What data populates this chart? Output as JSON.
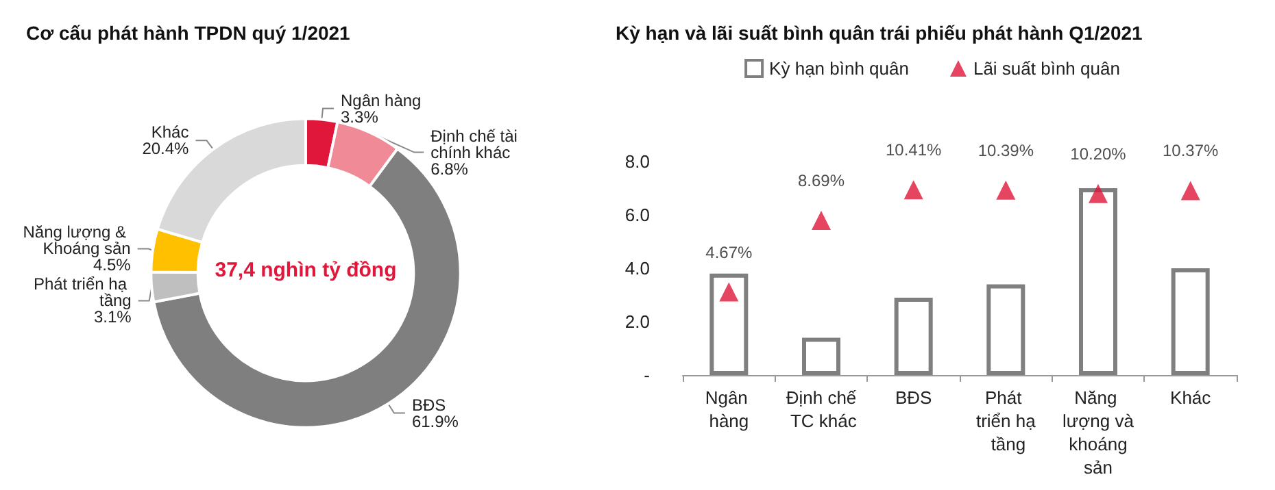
{
  "chart_data": [
    {
      "type": "donut",
      "title": "Cơ cấu phát hành TPDN quý 1/2021",
      "categories": [
        "Ngân hàng",
        "Định chế tài chính khác",
        "BĐS",
        "Phát triển hạ tầng",
        "Năng lượng & Khoáng sản",
        "Khác"
      ],
      "values": [
        3.3,
        6.8,
        61.9,
        3.1,
        4.5,
        20.4
      ],
      "value_labels": [
        "3.3%",
        "6.8%",
        "61.9%",
        "3.1%",
        "4.5%",
        "20.4%"
      ],
      "colors": [
        "#e0163a",
        "#f08a96",
        "#7f7f7f",
        "#bfbfbf",
        "#ffc000",
        "#d9d9d9"
      ],
      "annotations": [
        "37,4 nghìn tỷ đồng"
      ]
    },
    {
      "type": "bar",
      "title": "Kỳ hạn và lãi suất bình quân trái phiếu phát hành Q1/2021",
      "categories": [
        "Ngân hàng",
        "Định chế TC khác",
        "BĐS",
        "Phát triển hạ tầng",
        "Năng lượng và khoáng sản",
        "Khác"
      ],
      "series": [
        {
          "name": "Kỳ hạn bình quân",
          "type": "bar",
          "color": "#7f7f7f",
          "values": [
            3.8,
            1.4,
            2.9,
            3.4,
            7.0,
            4.0
          ]
        },
        {
          "name": "Lãi suất bình quân",
          "type": "scatter",
          "axis": "y2",
          "color": "#e0163a",
          "values": [
            4.67,
            8.69,
            10.41,
            10.39,
            10.2,
            10.37
          ],
          "value_labels": [
            "4.67%",
            "8.69%",
            "10.41%",
            "10.39%",
            "10.20%",
            "10.37%"
          ]
        }
      ],
      "ylim": [
        0,
        8
      ],
      "yticks": [
        {
          "value": 0,
          "label": "-"
        },
        {
          "value": 2,
          "label": "2.0"
        },
        {
          "value": 4,
          "label": "4.0"
        },
        {
          "value": 6,
          "label": "6.0"
        },
        {
          "value": 8,
          "label": "8.0"
        }
      ],
      "marker": "triangle",
      "grid": false,
      "legend": "top"
    }
  ]
}
